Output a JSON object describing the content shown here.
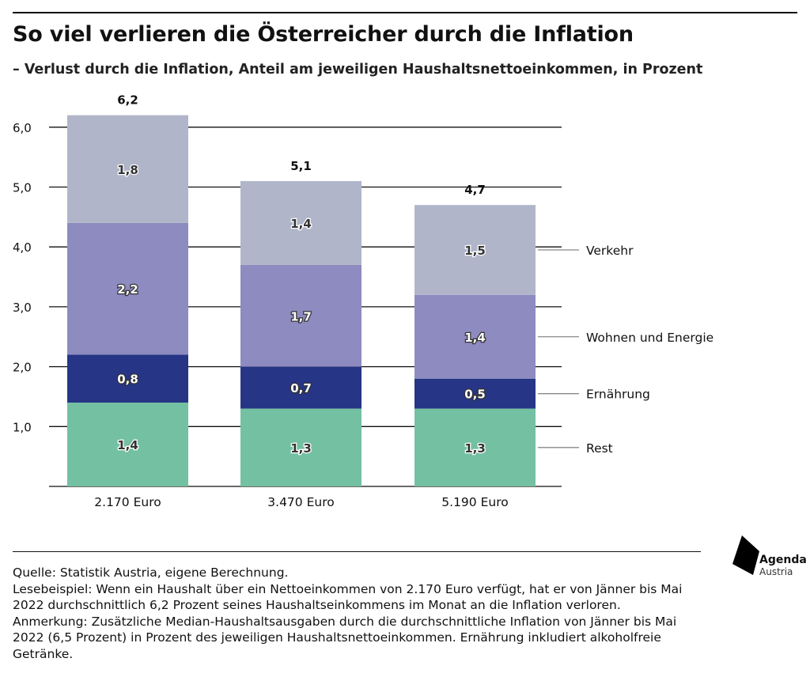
{
  "title": "So viel verlieren die Österreicher durch die Inflation",
  "subtitle": "– Verlust durch die Inflation, Anteil am jeweiligen Haushaltsnettoeinkommen, in Prozent",
  "chart_data": {
    "type": "stacked-bar",
    "categories": [
      "2.170 Euro",
      "3.470 Euro",
      "5.190 Euro"
    ],
    "series": [
      {
        "name": "Rest",
        "values": [
          1.4,
          1.3,
          1.3
        ],
        "labels": [
          "1,4",
          "1,3",
          "1,3"
        ],
        "color": "#74c0a2"
      },
      {
        "name": "Ernährung",
        "values": [
          0.8,
          0.7,
          0.5
        ],
        "labels": [
          "0,8",
          "0,7",
          "0,5"
        ],
        "color": "#263585"
      },
      {
        "name": "Wohnen und Energie",
        "values": [
          2.2,
          1.7,
          1.4
        ],
        "labels": [
          "2,2",
          "1,7",
          "1,4"
        ],
        "color": "#8d8bbf"
      },
      {
        "name": "Verkehr",
        "values": [
          1.8,
          1.4,
          1.5
        ],
        "labels": [
          "1,8",
          "1,4",
          "1,5"
        ],
        "color": "#b0b5c9"
      }
    ],
    "totals": [
      "6,2",
      "5,1",
      "4,7"
    ],
    "total_values": [
      6.2,
      5.1,
      4.7
    ],
    "yticks": [
      1,
      2,
      3,
      4,
      5,
      6
    ],
    "ytick_labels": [
      "1,0",
      "2,0",
      "3,0",
      "4,0",
      "5,0",
      "6,0"
    ],
    "ylim": [
      0,
      6.2
    ],
    "grid": true,
    "legend": "right, inline labels"
  },
  "notes": {
    "source": "Quelle: Statistik Austria, eigene Berechnung.",
    "example": "Lesebeispiel: Wenn ein Haushalt über ein Nettoeinkommen von 2.170 Euro verfügt, hat er von Jänner bis Mai 2022 durchschnittlich 6,2 Prozent seines Haushaltseinkommens im Monat an die Inflation verloren.",
    "remark": "Anmerkung: Zusätzliche Median-Haushaltsausgaben durch die durchschnittliche Inflation von Jänner bis Mai 2022 (6,5 Prozent) in Prozent des jeweiligen Haushaltsnettoeinkommen. Ernährung inkludiert alkoholfreie Getränke."
  },
  "logo": {
    "line1": "Agenda",
    "line2": "Austria"
  }
}
